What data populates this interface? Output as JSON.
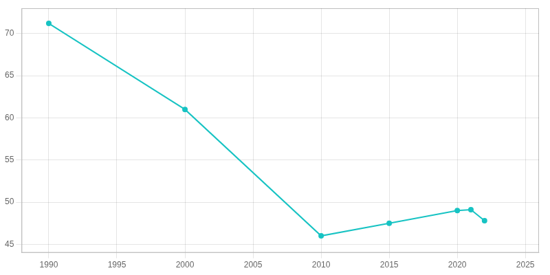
{
  "chart_data": {
    "type": "line",
    "x": [
      1990,
      2000,
      2010,
      2015,
      2020,
      2021,
      2022
    ],
    "values": [
      71.2,
      61.0,
      46.0,
      47.5,
      49.0,
      49.1,
      47.8
    ],
    "color": "#17c3c3",
    "marker": "circle",
    "xlim": [
      1988,
      2026
    ],
    "ylim": [
      44,
      73
    ],
    "xticks": [
      1990,
      1995,
      2000,
      2005,
      2010,
      2015,
      2020,
      2025
    ],
    "yticks": [
      45,
      50,
      55,
      60,
      65,
      70
    ],
    "grid": true
  }
}
